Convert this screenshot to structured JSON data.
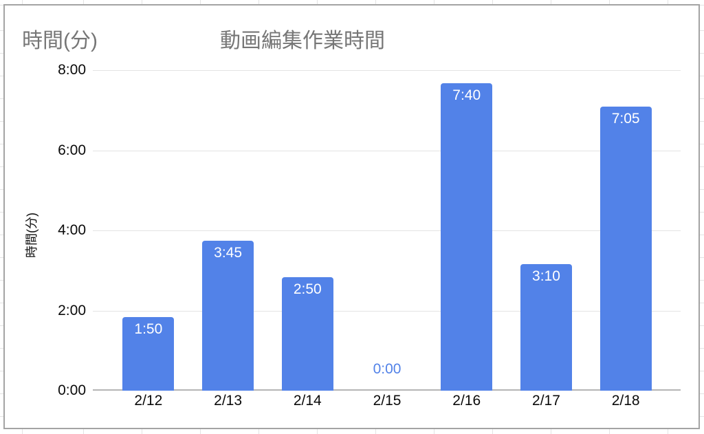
{
  "chart_data": {
    "type": "bar",
    "title": "動画編集作業時間",
    "corner_label": "時間(分)",
    "ylabel": "時間(分)",
    "categories": [
      "2/12",
      "2/13",
      "2/14",
      "2/15",
      "2/16",
      "2/17",
      "2/18"
    ],
    "values_hours": [
      1.8333,
      3.75,
      2.8333,
      0,
      7.6667,
      3.1667,
      7.0833
    ],
    "value_labels": [
      "1:50",
      "3:45",
      "2:50",
      "0:00",
      "7:40",
      "3:10",
      "7:05"
    ],
    "ylim": [
      0,
      8
    ],
    "yticks": [
      {
        "value": 8,
        "label": "8:00"
      },
      {
        "value": 6,
        "label": "6:00"
      },
      {
        "value": 4,
        "label": "4:00"
      },
      {
        "value": 2,
        "label": "2:00"
      },
      {
        "value": 0,
        "label": "0:00"
      }
    ],
    "grid": true,
    "legend": "none",
    "colors": {
      "bar": "#5282e8",
      "bar_label_text": "#ffffff",
      "zero_label": "#5282e8",
      "title_text": "#767676",
      "axis_text": "#0a0a0a",
      "gridline": "#e3e3e3",
      "baseline": "#b5b5b5",
      "card_border": "#a3a3a3",
      "sheet_gridline": "#e3e3e3"
    }
  }
}
